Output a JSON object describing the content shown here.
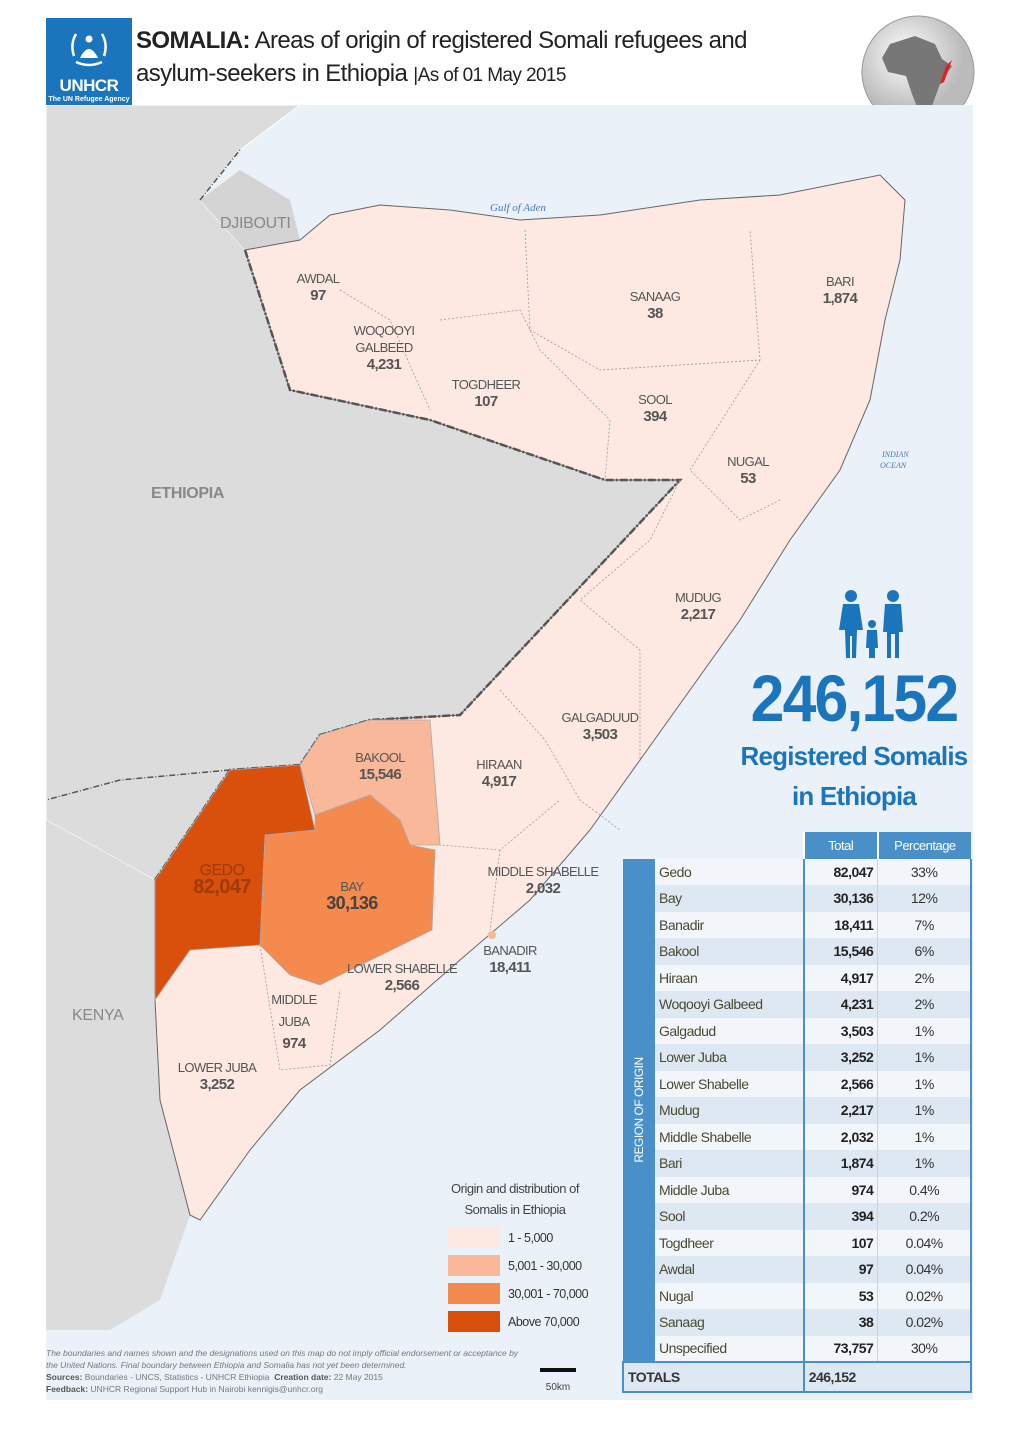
{
  "header": {
    "logo": {
      "brand": "UNHCR",
      "tagline": "The UN Refugee Agency"
    },
    "title_bold": "SOMALIA:",
    "title_rest": "Areas of origin of registered Somali refugees and",
    "title_line2": "asylum-seekers in Ethiopia",
    "date": "|As of 01 May 2015"
  },
  "map": {
    "countries": [
      "DJIBOUTI",
      "ETHIOPIA",
      "KENYA"
    ],
    "seas": [
      "Gulf of Aden",
      "INDIAN",
      "OCEAN"
    ],
    "regions": [
      {
        "name": "AWDAL",
        "value": "97"
      },
      {
        "name": "WOQOOYI",
        "name2": "GALBEED",
        "value": "4,231"
      },
      {
        "name": "TOGDHEER",
        "value": "107"
      },
      {
        "name": "SANAAG",
        "value": "38"
      },
      {
        "name": "BARI",
        "value": "1,874"
      },
      {
        "name": "SOOL",
        "value": "394"
      },
      {
        "name": "NUGAL",
        "value": "53"
      },
      {
        "name": "MUDUG",
        "value": "2,217"
      },
      {
        "name": "GALGADUUD",
        "value": "3,503"
      },
      {
        "name": "HIRAAN",
        "value": "4,917"
      },
      {
        "name": "BAKOOL",
        "value": "15,546"
      },
      {
        "name": "GEDO",
        "value": "82,047"
      },
      {
        "name": "BAY",
        "value": "30,136"
      },
      {
        "name": "MIDDLE SHABELLE",
        "value": "2,032"
      },
      {
        "name": "BANADIR",
        "value": "18,411"
      },
      {
        "name": "LOWER SHABELLE",
        "value": "2,566"
      },
      {
        "name": "MIDDLE",
        "name2": "JUBA",
        "value": "974"
      },
      {
        "name": "LOWER JUBA",
        "value": "3,252"
      }
    ],
    "colors": {
      "low": "#fde9e1",
      "mid": "#f9b899",
      "high": "#f58a4f",
      "top": "#d94f0c",
      "sea": "#eaf1f8",
      "neighbour": "#dcdcdc",
      "accent": "#1b75bc"
    }
  },
  "headline": {
    "number": "246,152",
    "line1": "Registered Somalis",
    "line2": "in Ethiopia",
    "icon": "family-icon"
  },
  "legend": {
    "title1": "Origin and distribution of",
    "title2": "Somalis in Ethiopia",
    "items": [
      {
        "label": "1 - 5,000",
        "color": "#fde9e1"
      },
      {
        "label": "5,001 - 30,000",
        "color": "#f9b899"
      },
      {
        "label": "30,001 - 70,000",
        "color": "#f58a4f"
      },
      {
        "label": "Above 70,000",
        "color": "#d94f0c"
      }
    ]
  },
  "table": {
    "headers": {
      "total": "Total",
      "percentage": "Percentage"
    },
    "side_label": "REGION OF ORIGIN",
    "rows": [
      {
        "region": "Gedo",
        "total": "82,047",
        "pct": "33%"
      },
      {
        "region": "Bay",
        "total": "30,136",
        "pct": "12%"
      },
      {
        "region": "Banadir",
        "total": "18,411",
        "pct": "7%"
      },
      {
        "region": "Bakool",
        "total": "15,546",
        "pct": "6%"
      },
      {
        "region": "Hiraan",
        "total": "4,917",
        "pct": "2%"
      },
      {
        "region": "Woqooyi Galbeed",
        "total": "4,231",
        "pct": "2%"
      },
      {
        "region": "Galgadud",
        "total": "3,503",
        "pct": "1%"
      },
      {
        "region": "Lower Juba",
        "total": "3,252",
        "pct": "1%"
      },
      {
        "region": "Lower Shabelle",
        "total": "2,566",
        "pct": "1%"
      },
      {
        "region": "Mudug",
        "total": "2,217",
        "pct": "1%"
      },
      {
        "region": "Middle Shabelle",
        "total": "2,032",
        "pct": "1%"
      },
      {
        "region": "Bari",
        "total": "1,874",
        "pct": "1%"
      },
      {
        "region": "Middle Juba",
        "total": "974",
        "pct": "0.4%"
      },
      {
        "region": "Sool",
        "total": "394",
        "pct": "0.2%"
      },
      {
        "region": "Togdheer",
        "total": "107",
        "pct": "0.04%"
      },
      {
        "region": "Awdal",
        "total": "97",
        "pct": "0.04%"
      },
      {
        "region": "Nugal",
        "total": "53",
        "pct": "0.02%"
      },
      {
        "region": "Sanaag",
        "total": "38",
        "pct": "0.02%"
      },
      {
        "region": "Unspecified",
        "total": "73,757",
        "pct": "30%"
      }
    ],
    "totals": {
      "label": "TOTALS",
      "total": "246,152"
    }
  },
  "footer": {
    "disclaimer": "The boundaries and names shown and the designations used on this map do not imply official endorsement or acceptance by the United Nations. Final boundary between Ethiopia and Somalia has not yet been determined.",
    "sources_label": "Sources:",
    "sources": "Boundaries - UNCS, Statistics - UNHCR Ethiopia",
    "creation_label": "Creation date:",
    "creation": "22 May 2015",
    "feedback_label": "Feedback:",
    "feedback": "UNHCR Regional Support Hub in Nairobi   kennigis@unhcr.org",
    "scale": "50km"
  }
}
